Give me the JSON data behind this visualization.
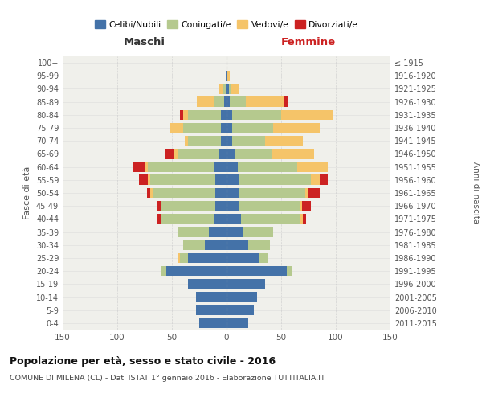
{
  "age_groups": [
    "0-4",
    "5-9",
    "10-14",
    "15-19",
    "20-24",
    "25-29",
    "30-34",
    "35-39",
    "40-44",
    "45-49",
    "50-54",
    "55-59",
    "60-64",
    "65-69",
    "70-74",
    "75-79",
    "80-84",
    "85-89",
    "90-94",
    "95-99",
    "100+"
  ],
  "birth_years": [
    "2011-2015",
    "2006-2010",
    "2001-2005",
    "1996-2000",
    "1991-1995",
    "1986-1990",
    "1981-1985",
    "1976-1980",
    "1971-1975",
    "1966-1970",
    "1961-1965",
    "1956-1960",
    "1951-1955",
    "1946-1950",
    "1941-1945",
    "1936-1940",
    "1931-1935",
    "1926-1930",
    "1921-1925",
    "1916-1920",
    "≤ 1915"
  ],
  "maschi": {
    "celibi": [
      25,
      28,
      28,
      35,
      55,
      35,
      20,
      16,
      12,
      10,
      10,
      10,
      12,
      7,
      5,
      5,
      5,
      2,
      1,
      1,
      0
    ],
    "coniugati": [
      0,
      0,
      0,
      0,
      5,
      8,
      20,
      28,
      48,
      50,
      58,
      60,
      60,
      38,
      30,
      35,
      30,
      10,
      2,
      0,
      0
    ],
    "vedovi": [
      0,
      0,
      0,
      0,
      0,
      2,
      0,
      0,
      0,
      0,
      2,
      2,
      3,
      3,
      3,
      12,
      5,
      15,
      4,
      0,
      0
    ],
    "divorziati": [
      0,
      0,
      0,
      0,
      0,
      0,
      0,
      0,
      3,
      3,
      3,
      8,
      10,
      8,
      0,
      0,
      3,
      0,
      0,
      0,
      0
    ]
  },
  "femmine": {
    "nubili": [
      20,
      25,
      28,
      35,
      55,
      30,
      20,
      15,
      13,
      12,
      12,
      12,
      10,
      7,
      5,
      5,
      5,
      3,
      2,
      1,
      0
    ],
    "coniugate": [
      0,
      0,
      0,
      0,
      5,
      8,
      20,
      28,
      55,
      55,
      60,
      65,
      55,
      35,
      30,
      38,
      45,
      15,
      2,
      0,
      0
    ],
    "vedove": [
      0,
      0,
      0,
      0,
      0,
      0,
      0,
      0,
      2,
      2,
      3,
      8,
      28,
      38,
      35,
      42,
      48,
      35,
      8,
      2,
      0
    ],
    "divorziate": [
      0,
      0,
      0,
      0,
      0,
      0,
      0,
      0,
      3,
      8,
      10,
      8,
      0,
      0,
      0,
      0,
      0,
      3,
      0,
      0,
      0
    ]
  },
  "colors": {
    "celibi_nubili": "#4472a8",
    "coniugati": "#b5c98e",
    "vedovi": "#f5c469",
    "divorziati": "#cc2222"
  },
  "xlim": 150,
  "title": "Popolazione per età, sesso e stato civile - 2016",
  "subtitle": "COMUNE DI MILENA (CL) - Dati ISTAT 1° gennaio 2016 - Elaborazione TUTTITALIA.IT",
  "ylabel_left": "Fasce di età",
  "ylabel_right": "Anni di nascita",
  "xlabel_maschi": "Maschi",
  "xlabel_femmine": "Femmine",
  "bg_color": "#f0f0eb",
  "grid_color": "#cccccc"
}
